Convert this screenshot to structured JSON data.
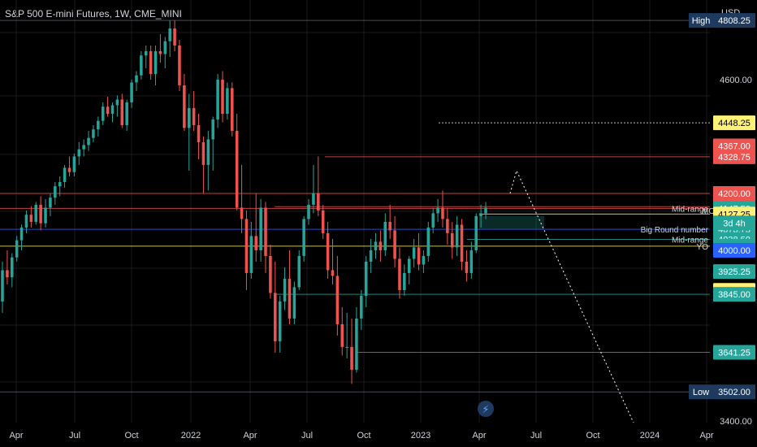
{
  "header": {
    "title": "S&P 500 E-mini Futures, 1W, CME_MINI",
    "currency": "USD"
  },
  "colors": {
    "background": "#000000",
    "up": "#26a69a",
    "down": "#ef5350",
    "grid": "#1a1a1a",
    "text": "#d1d4dc"
  },
  "chart_data": {
    "type": "candlestick",
    "x_axis_ticks": [
      "Apr",
      "Jul",
      "Oct",
      "2022",
      "Apr",
      "Jul",
      "Oct",
      "2023",
      "Apr",
      "Jul",
      "Oct",
      "2024",
      "Apr"
    ],
    "y_axis_ticks": [
      4600.0,
      3400.0
    ],
    "ylim": [
      3394,
      4880
    ],
    "candles_period": "1W",
    "candles": [
      [
        3820,
        3960,
        3780,
        3930
      ],
      [
        3930,
        4000,
        3880,
        3905
      ],
      [
        3905,
        3990,
        3870,
        3975
      ],
      [
        3975,
        4050,
        3960,
        4035
      ],
      [
        4035,
        4090,
        4000,
        4080
      ],
      [
        4080,
        4140,
        4060,
        4125
      ],
      [
        4125,
        4155,
        4080,
        4100
      ],
      [
        4100,
        4170,
        4090,
        4160
      ],
      [
        4160,
        4190,
        4070,
        4095
      ],
      [
        4095,
        4180,
        4080,
        4150
      ],
      [
        4150,
        4200,
        4120,
        4185
      ],
      [
        4185,
        4240,
        4160,
        4225
      ],
      [
        4225,
        4260,
        4190,
        4240
      ],
      [
        4240,
        4300,
        4220,
        4290
      ],
      [
        4290,
        4330,
        4260,
        4275
      ],
      [
        4275,
        4340,
        4260,
        4330
      ],
      [
        4330,
        4380,
        4300,
        4355
      ],
      [
        4355,
        4390,
        4330,
        4370
      ],
      [
        4370,
        4420,
        4350,
        4395
      ],
      [
        4395,
        4440,
        4380,
        4425
      ],
      [
        4425,
        4470,
        4400,
        4455
      ],
      [
        4455,
        4520,
        4440,
        4505
      ],
      [
        4505,
        4540,
        4470,
        4480
      ],
      [
        4480,
        4520,
        4450,
        4510
      ],
      [
        4510,
        4545,
        4470,
        4530
      ],
      [
        4530,
        4550,
        4430,
        4440
      ],
      [
        4440,
        4530,
        4420,
        4520
      ],
      [
        4520,
        4600,
        4500,
        4590
      ],
      [
        4590,
        4630,
        4560,
        4615
      ],
      [
        4615,
        4700,
        4600,
        4685
      ],
      [
        4685,
        4720,
        4640,
        4700
      ],
      [
        4700,
        4720,
        4600,
        4620
      ],
      [
        4620,
        4720,
        4580,
        4700
      ],
      [
        4700,
        4760,
        4660,
        4690
      ],
      [
        4690,
        4750,
        4640,
        4735
      ],
      [
        4735,
        4808.25,
        4680,
        4780
      ],
      [
        4780,
        4808,
        4700,
        4720
      ],
      [
        4720,
        4740,
        4560,
        4580
      ],
      [
        4580,
        4620,
        4420,
        4430
      ],
      [
        4430,
        4550,
        4280,
        4500
      ],
      [
        4500,
        4560,
        4420,
        4440
      ],
      [
        4440,
        4480,
        4320,
        4380
      ],
      [
        4380,
        4400,
        4200,
        4300
      ],
      [
        4300,
        4420,
        4210,
        4390
      ],
      [
        4390,
        4470,
        4280,
        4460
      ],
      [
        4460,
        4620,
        4430,
        4600
      ],
      [
        4600,
        4630,
        4450,
        4480
      ],
      [
        4480,
        4590,
        4460,
        4570
      ],
      [
        4570,
        4590,
        4400,
        4420
      ],
      [
        4420,
        4480,
        4140,
        4150
      ],
      [
        4150,
        4300,
        4060,
        4110
      ],
      [
        4110,
        4140,
        3860,
        3920
      ],
      [
        3920,
        4100,
        3900,
        4050
      ],
      [
        4050,
        4200,
        3960,
        4000
      ],
      [
        4000,
        4180,
        3960,
        4150
      ],
      [
        4150,
        4170,
        3920,
        3980
      ],
      [
        3980,
        4020,
        3830,
        3850
      ],
      [
        3850,
        3960,
        3640,
        3680
      ],
      [
        3680,
        3840,
        3640,
        3820
      ],
      [
        3820,
        3940,
        3790,
        3900
      ],
      [
        3900,
        4000,
        3740,
        3760
      ],
      [
        3760,
        3890,
        3740,
        3870
      ],
      [
        3870,
        4000,
        3860,
        3980
      ],
      [
        3980,
        4120,
        3960,
        4110
      ],
      [
        4110,
        4180,
        4090,
        4160
      ],
      [
        4160,
        4300,
        4130,
        4200
      ],
      [
        4200,
        4330,
        4120,
        4140
      ],
      [
        4140,
        4160,
        4040,
        4060
      ],
      [
        4060,
        4100,
        3900,
        3930
      ],
      [
        3930,
        4040,
        3880,
        3910
      ],
      [
        3910,
        3980,
        3700,
        3740
      ],
      [
        3740,
        3800,
        3630,
        3660
      ],
      [
        3660,
        3780,
        3620,
        3660
      ],
      [
        3660,
        3760,
        3530,
        3580
      ],
      [
        3580,
        3800,
        3570,
        3760
      ],
      [
        3760,
        3860,
        3720,
        3840
      ],
      [
        3840,
        3980,
        3800,
        3960
      ],
      [
        3960,
        4040,
        3920,
        4000
      ],
      [
        4000,
        4060,
        3970,
        4030
      ],
      [
        4030,
        4070,
        3960,
        4000
      ],
      [
        4000,
        4130,
        3980,
        4100
      ],
      [
        4100,
        4160,
        4040,
        4070
      ],
      [
        4070,
        4120,
        3940,
        3970
      ],
      [
        3970,
        4010,
        3830,
        3860
      ],
      [
        3860,
        3950,
        3840,
        3920
      ],
      [
        3920,
        3980,
        3880,
        3970
      ],
      [
        3970,
        4040,
        3940,
        4010
      ],
      [
        4010,
        4060,
        3930,
        3950
      ],
      [
        3950,
        4000,
        3920,
        3980
      ],
      [
        3980,
        4100,
        3960,
        4080
      ],
      [
        4080,
        4150,
        4060,
        4130
      ],
      [
        4130,
        4180,
        4100,
        4150
      ],
      [
        4150,
        4210,
        4080,
        4110
      ],
      [
        4110,
        4150,
        4020,
        4060
      ],
      [
        4060,
        4100,
        3970,
        4010
      ],
      [
        4010,
        4120,
        3980,
        4090
      ],
      [
        4090,
        4110,
        3930,
        3960
      ],
      [
        3960,
        4000,
        3890,
        3920
      ],
      [
        3920,
        4030,
        3900,
        4000
      ],
      [
        4000,
        4130,
        3990,
        4120
      ],
      [
        4120,
        4160,
        4080,
        4130
      ],
      [
        4130,
        4170,
        4110,
        4150
      ]
    ],
    "price_levels": [
      {
        "value": 4808.25,
        "label": "High",
        "line_color": "#5d606b",
        "badge_color": "#1e3a5f",
        "label_bg": "#1e3a5f"
      },
      {
        "value": 4448.25,
        "label": "",
        "line_color": "#f0f0f0",
        "badge_color": "#fff176",
        "text_color": "#000000"
      },
      {
        "value": 4367.0,
        "label": "",
        "line_color": "#ef5350",
        "badge_color": "#ef5350"
      },
      {
        "value": 4328.75,
        "label": "",
        "line_color": "#ef5350",
        "badge_color": "#ef5350"
      },
      {
        "value": 4200.0,
        "label": "",
        "line_color": "#ef5350",
        "badge_color": "#ef5350"
      },
      {
        "value": 4153.5,
        "label": "",
        "line_color": "#ef5350",
        "badge_color": "#ef5350"
      },
      {
        "value": 4147.5,
        "label": "Mid-range",
        "line_color": "#ef5350",
        "badge_color": "#26a69a"
      },
      {
        "value": 4127.25,
        "label": "",
        "line_color": "#fff176",
        "badge_color": "#fff176",
        "text_color": "#000000"
      },
      {
        "value": 4073.75,
        "label": "Big Round number",
        "line_color": "#2962ff",
        "badge_color": "#26a69a"
      },
      {
        "value": 4038.5,
        "label": "Mid-range",
        "line_color": "#26a69a",
        "badge_color": "#26a69a"
      },
      {
        "value": 4014.5,
        "label": "YO",
        "line_color": "#fff176",
        "badge_color": "#26a69a"
      },
      {
        "value": 4000.0,
        "label": "",
        "line_color": "#2962ff",
        "badge_color": "#2962ff"
      },
      {
        "value": 3925.25,
        "label": "",
        "line_color": "#26a69a",
        "badge_color": "#26a69a"
      },
      {
        "value": 3859.0,
        "label": "",
        "line_color": "#fff176",
        "badge_color": "#fff176",
        "text_color": "#000000"
      },
      {
        "value": 3845.0,
        "label": "",
        "line_color": "#26a69a",
        "badge_color": "#26a69a"
      },
      {
        "value": 3641.25,
        "label": "",
        "line_color": "#26a69a",
        "badge_color": "#26a69a"
      },
      {
        "value": 3502.0,
        "label": "Low",
        "line_color": "#5d606b",
        "badge_color": "#1e3a5f",
        "label_bg": "#1e3a5f"
      }
    ],
    "annotations": {
      "current_price_countdown": "3d 4h",
      "mo_label": "MO"
    }
  }
}
